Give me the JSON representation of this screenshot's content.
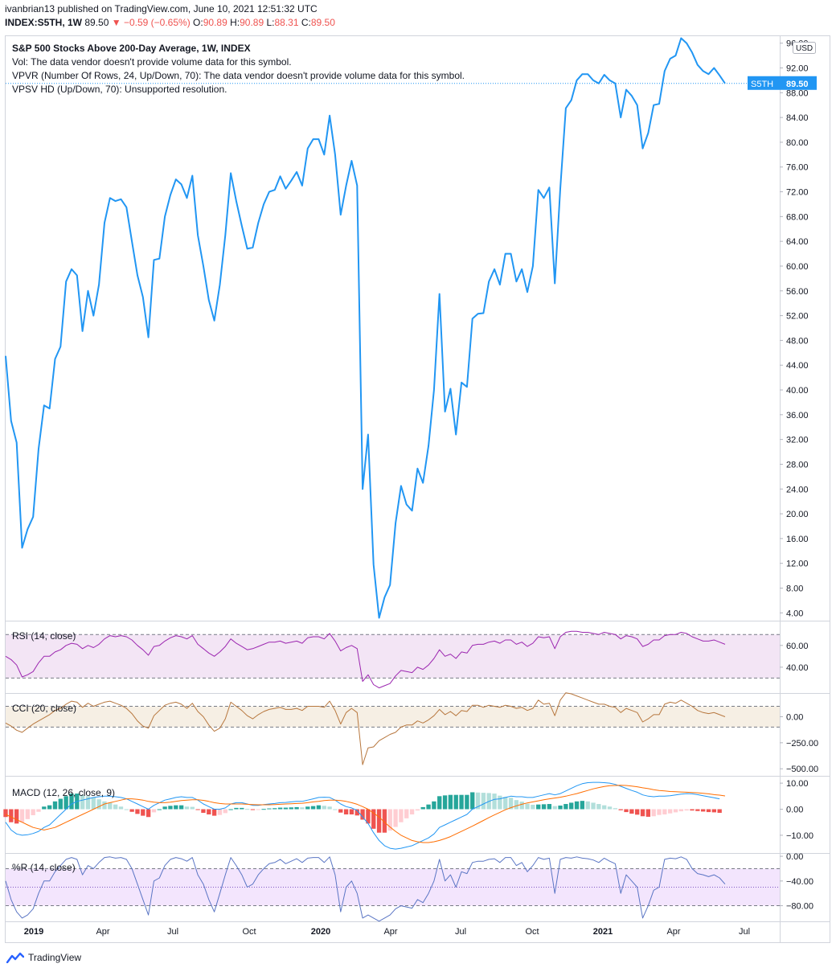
{
  "header": {
    "line1": "ivanbrian13 published on TradingView.com, June 10, 2021 12:51:32 UTC",
    "symbol": "INDEX:S5TH, 1W",
    "last": "89.50",
    "arrow": "▼",
    "change": "−0.59 (−0.65%)",
    "o_label": "O:",
    "o_value": "90.89",
    "h_label": "H:",
    "h_value": "90.89",
    "l_label": "L:",
    "l_value": "88.31",
    "c_label": "C:",
    "c_value": "89.50"
  },
  "legend": {
    "title": "S&P 500 Stocks Above 200-Day Average, 1W, INDEX",
    "vol": "Vol: The data vendor doesn't provide volume data for this symbol.",
    "vpvr": "VPVR (Number Of Rows, 24, Up/Down, 70): The data vendor doesn't provide volume data for this symbol.",
    "vpsv": "VPSV HD (Up/Down, 70): Unsupported resolution."
  },
  "price_tag": {
    "symbol": "S5TH",
    "value": "89.50"
  },
  "currency": "USD",
  "footer": {
    "brand": "TradingView"
  },
  "colors": {
    "main_line": "#2196f3",
    "rsi_line": "#9c27b0",
    "rsi_band": "#f3e5f5",
    "cci_line": "#b7773e",
    "cci_band": "#f6efe4",
    "macd_line": "#2196f3",
    "signal_line": "#ff6d00",
    "hist_pos_strong": "#26a69a",
    "hist_pos_weak": "#b2dfdb",
    "hist_neg_strong": "#ef5350",
    "hist_neg_weak": "#ffcdd2",
    "wr_line": "#5a75c4",
    "wr_band": "#f3e5fd"
  },
  "chart_data": [
    {
      "type": "line",
      "title": "S&P 500 Stocks Above 200-Day Average, 1W, INDEX",
      "x_tick_labels": [
        "2019",
        "Apr",
        "Jul",
        "Oct",
        "2020",
        "Apr",
        "Jul",
        "Oct",
        "2021",
        "Apr",
        "Jul"
      ],
      "y_ticks": [
        "96.00",
        "92.00",
        "88.00",
        "84.00",
        "80.00",
        "76.00",
        "72.00",
        "68.00",
        "64.00",
        "60.00",
        "56.00",
        "52.00",
        "48.00",
        "44.00",
        "40.00",
        "36.00",
        "32.00",
        "28.00",
        "24.00",
        "20.00",
        "16.00",
        "12.00",
        "8.00",
        "4.00"
      ],
      "ylim": [
        3,
        97
      ],
      "last_value": 89.5,
      "series": [
        {
          "values": [
            45.5,
            35,
            31.5,
            14.5,
            17.5,
            19.5,
            30.5,
            37.5,
            37,
            45,
            47,
            57.5,
            59.5,
            58.5,
            49.5,
            56,
            52,
            57,
            67,
            71,
            70.5,
            70.8,
            69.5,
            64,
            58.5,
            55,
            48.5,
            61,
            61.2,
            68,
            71.5,
            74,
            73.2,
            71,
            74.6,
            65,
            60,
            54.5,
            51.2,
            57,
            65,
            75,
            70.5,
            66.5,
            62.8,
            63,
            67,
            70,
            72,
            72.3,
            74.5,
            72.5,
            73.8,
            75.2,
            73,
            79,
            80.5,
            80.5,
            78,
            84.3,
            78,
            68.3,
            73,
            77,
            73,
            24,
            32.8,
            11.8,
            3.2,
            6.5,
            8.5,
            18.5,
            24.5,
            21.5,
            20.5,
            27.3,
            25,
            31,
            40,
            55.5,
            36.5,
            40.2,
            32.8,
            41.2,
            40.5,
            51.5,
            52.3,
            52.4,
            57.5,
            59.5,
            57,
            62,
            62,
            57.5,
            59.5,
            55.8,
            60,
            72.3,
            71,
            72.7,
            57.2,
            72.5,
            85.5,
            86.8,
            90,
            91,
            91,
            90,
            89.5,
            90.9,
            90,
            89.5,
            84,
            88.5,
            87.5,
            86,
            79,
            81.5,
            86,
            86.2,
            91.5,
            93.5,
            94,
            96.8,
            96,
            94.5,
            92.5,
            91.5,
            91,
            92,
            90.8,
            89.5
          ]
        }
      ]
    },
    {
      "type": "line",
      "title": "RSI (14, close)",
      "y_ticks": [
        "60.00",
        "40.00"
      ],
      "ylim": [
        17,
        82
      ],
      "bands": [
        30,
        70
      ],
      "series": [
        {
          "name": "RSI (14, close)",
          "values": [
            50,
            47,
            42,
            31,
            33,
            36,
            44,
            50,
            50,
            54,
            56,
            60,
            62,
            61,
            57,
            60,
            58,
            61,
            66,
            69,
            68,
            69,
            68,
            65,
            60,
            56,
            51,
            59,
            60,
            64,
            67,
            69,
            68,
            66,
            69,
            61,
            57,
            53,
            50,
            54,
            59,
            66,
            62,
            59,
            56,
            57,
            59,
            61,
            63,
            63,
            64,
            62,
            63,
            64,
            62,
            67,
            68,
            68,
            66,
            71,
            64,
            55,
            58,
            60,
            57,
            27,
            33,
            24,
            21,
            23,
            25,
            32,
            37,
            36,
            35,
            40,
            38,
            42,
            48,
            56,
            50,
            52,
            48,
            54,
            53,
            60,
            61,
            61,
            63,
            64,
            62,
            65,
            65,
            61,
            63,
            59,
            62,
            68,
            67,
            68,
            57,
            68,
            72,
            73,
            73,
            72,
            72,
            71,
            70,
            72,
            71,
            70,
            66,
            69,
            68,
            66,
            59,
            61,
            65,
            65,
            69,
            70,
            70,
            72,
            71,
            68,
            66,
            64,
            64,
            65,
            63,
            61
          ]
        }
      ]
    },
    {
      "type": "line",
      "title": "CCI (20, close)",
      "y_ticks": [
        "0.00",
        "−250.00",
        "−500.00"
      ],
      "ylim": [
        -560,
        220
      ],
      "bands": [
        -100,
        100
      ],
      "series": [
        {
          "name": "CCI (20, close)",
          "values": [
            -60,
            -90,
            -130,
            -150,
            -110,
            -70,
            -40,
            -10,
            20,
            60,
            80,
            120,
            150,
            140,
            90,
            130,
            100,
            120,
            140,
            150,
            130,
            110,
            80,
            30,
            -40,
            -90,
            -110,
            10,
            60,
            110,
            130,
            140,
            120,
            80,
            130,
            50,
            0,
            -80,
            -140,
            -110,
            -20,
            140,
            100,
            60,
            10,
            -20,
            20,
            50,
            70,
            80,
            90,
            70,
            70,
            80,
            60,
            100,
            100,
            100,
            90,
            150,
            60,
            -70,
            40,
            80,
            40,
            -460,
            -300,
            -290,
            -230,
            -200,
            -170,
            -150,
            -100,
            -80,
            -80,
            -40,
            -60,
            -30,
            10,
            70,
            20,
            50,
            10,
            60,
            50,
            110,
            110,
            90,
            110,
            100,
            90,
            110,
            100,
            80,
            90,
            60,
            80,
            160,
            120,
            130,
            10,
            160,
            230,
            220,
            200,
            180,
            160,
            140,
            120,
            120,
            100,
            90,
            40,
            80,
            60,
            40,
            -50,
            -20,
            20,
            20,
            120,
            140,
            130,
            160,
            130,
            100,
            60,
            40,
            30,
            40,
            20,
            0
          ]
        }
      ]
    },
    {
      "type": "bar",
      "title": "MACD (12, 26, close, 9)",
      "y_ticks": [
        "10.00",
        "0.00",
        "−10.00"
      ],
      "ylim": [
        -16.5,
        12.5
      ],
      "series": [
        {
          "name": "MACD",
          "values": [
            -5,
            -8,
            -9.5,
            -10,
            -9.8,
            -9.3,
            -8.5,
            -7,
            -6,
            -4,
            -2,
            0,
            2,
            3,
            3.5,
            4,
            4.5,
            4.8,
            5,
            5,
            4.8,
            4.5,
            4,
            3,
            2,
            1,
            0,
            1.5,
            2.5,
            3.5,
            4,
            4.5,
            4.8,
            4.5,
            4.5,
            3.5,
            2,
            1,
            0,
            0,
            0.5,
            2,
            2.5,
            2.5,
            2,
            1.5,
            1.5,
            1.8,
            2,
            2.2,
            2.5,
            2.6,
            2.8,
            3,
            3,
            3.5,
            4,
            4.5,
            4.6,
            4.5,
            3.5,
            2,
            1,
            0.5,
            -0.5,
            -3,
            -5.5,
            -9,
            -12,
            -14,
            -15,
            -15.3,
            -15,
            -14.5,
            -14,
            -13,
            -12,
            -11,
            -9.5,
            -7,
            -6,
            -5,
            -4,
            -3,
            -2,
            0,
            1,
            2,
            3,
            3.8,
            4,
            4.5,
            5,
            4.8,
            4.8,
            4.5,
            4.5,
            5,
            5.5,
            6,
            5.5,
            6,
            7,
            8,
            9,
            9.8,
            10.2,
            10.3,
            10.3,
            10.2,
            10,
            9.5,
            8.8,
            8,
            7.2,
            6.5,
            5.5,
            5,
            4.8,
            5,
            5,
            5.2,
            5.5,
            5.8,
            6,
            5.9,
            5.6,
            5.2,
            4.8,
            4.4,
            4
          ]
        },
        {
          "name": "Signal",
          "values": [
            -2,
            -3,
            -4,
            -5,
            -6,
            -7,
            -7.5,
            -8,
            -7.5,
            -7,
            -6,
            -5,
            -4,
            -3,
            -2,
            -1,
            0,
            1,
            2,
            2.5,
            3,
            3.5,
            4,
            4,
            3.8,
            3.5,
            3,
            2.7,
            2.5,
            2.5,
            2.7,
            3,
            3.3,
            3.5,
            3.6,
            3.6,
            3.4,
            3,
            2.5,
            2.2,
            2,
            2,
            2,
            2,
            1.9,
            1.8,
            1.7,
            1.7,
            1.7,
            1.8,
            1.9,
            2,
            2.1,
            2.2,
            2.3,
            2.5,
            2.8,
            3,
            3.3,
            3.5,
            3.5,
            3.3,
            3,
            2.5,
            1.9,
            1,
            0,
            -1.5,
            -3,
            -5,
            -6.8,
            -8.5,
            -10,
            -11,
            -12,
            -12.5,
            -12.8,
            -12.8,
            -12.5,
            -12,
            -11.3,
            -10.5,
            -9.5,
            -8.5,
            -7.5,
            -6.5,
            -5.4,
            -4.3,
            -3.2,
            -2.2,
            -1.2,
            -0.2,
            0.6,
            1.3,
            1.9,
            2.4,
            2.8,
            3.2,
            3.6,
            4,
            4.3,
            4.6,
            5,
            5.5,
            6,
            6.6,
            7.2,
            7.8,
            8.3,
            8.7,
            9,
            9.1,
            9.2,
            9.1,
            8.9,
            8.6,
            8.2,
            7.9,
            7.5,
            7.2,
            7,
            6.8,
            6.7,
            6.6,
            6.5,
            6.4,
            6.3,
            6.1,
            5.9,
            5.6,
            5.4,
            5.1
          ]
        }
      ]
    },
    {
      "type": "line",
      "title": "%R (14, close)",
      "y_ticks": [
        "0.00",
        "−40.00",
        "−80.00"
      ],
      "ylim": [
        -104,
        4
      ],
      "bands": [
        -80,
        -20
      ],
      "series": [
        {
          "name": "%R (14, close)",
          "values": [
            -40,
            -70,
            -90,
            -100,
            -95,
            -85,
            -60,
            -40,
            -40,
            -25,
            -15,
            -5,
            -2,
            -5,
            -30,
            -15,
            -20,
            -10,
            -2,
            -1,
            -3,
            -2,
            -5,
            -20,
            -45,
            -70,
            -95,
            -40,
            -35,
            -15,
            -5,
            -2,
            -4,
            -8,
            -2,
            -30,
            -45,
            -70,
            -90,
            -60,
            -30,
            -2,
            -15,
            -30,
            -50,
            -45,
            -30,
            -20,
            -12,
            -10,
            -5,
            -12,
            -8,
            -4,
            -10,
            -3,
            -2,
            -2,
            -10,
            -1,
            -30,
            -90,
            -50,
            -40,
            -60,
            -100,
            -95,
            -100,
            -105,
            -100,
            -95,
            -85,
            -80,
            -82,
            -84,
            -70,
            -75,
            -60,
            -40,
            -5,
            -40,
            -30,
            -50,
            -25,
            -28,
            -10,
            -8,
            -8,
            -5,
            -4,
            -10,
            -2,
            -2,
            -15,
            -10,
            -25,
            -15,
            -2,
            -5,
            -3,
            -60,
            -5,
            -2,
            -3,
            -1,
            -3,
            -4,
            -6,
            -10,
            -3,
            -8,
            -12,
            -60,
            -30,
            -40,
            -50,
            -100,
            -80,
            -55,
            -50,
            -5,
            -3,
            -4,
            -1,
            -5,
            -20,
            -28,
            -30,
            -33,
            -30,
            -35,
            -45
          ]
        }
      ]
    }
  ]
}
